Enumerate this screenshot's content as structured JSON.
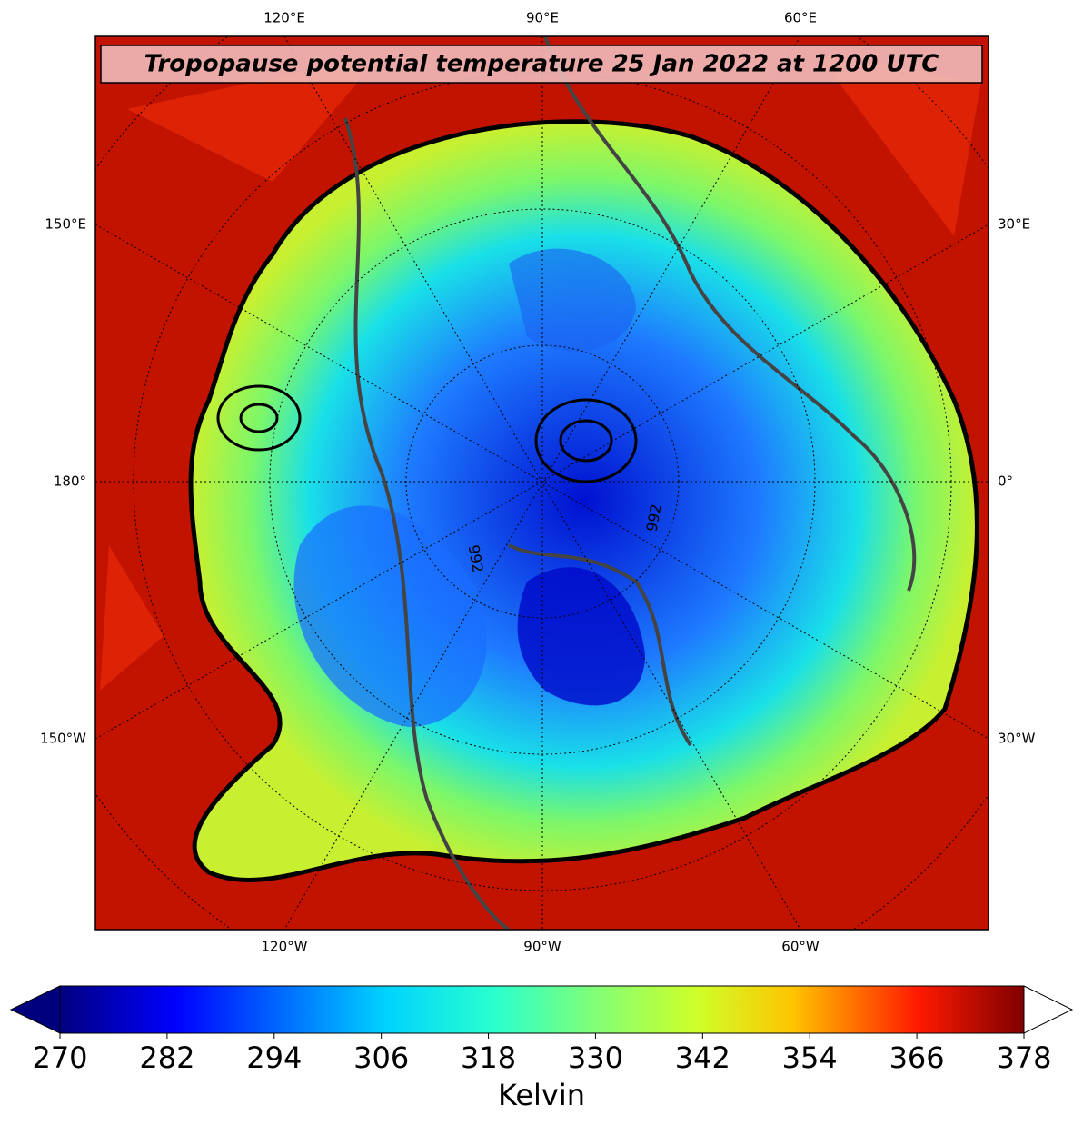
{
  "title": "Tropopause potential temperature 25 Jan 2022 at 1200 UTC",
  "map_labels": {
    "top": [
      "120°E",
      "90°E",
      "60°E"
    ],
    "bottom": [
      "120°W",
      "90°W",
      "60°W"
    ],
    "left": [
      "150°E",
      "180°",
      "150°W"
    ],
    "right": [
      "30°E",
      "0°",
      "30°W"
    ]
  },
  "contour_labels": [
    "992",
    "992"
  ],
  "colorbar": {
    "label": "Kelvin",
    "lim": [
      270,
      378
    ],
    "ticks": [
      270,
      282,
      294,
      306,
      318,
      330,
      342,
      354,
      366,
      378
    ]
  }
}
